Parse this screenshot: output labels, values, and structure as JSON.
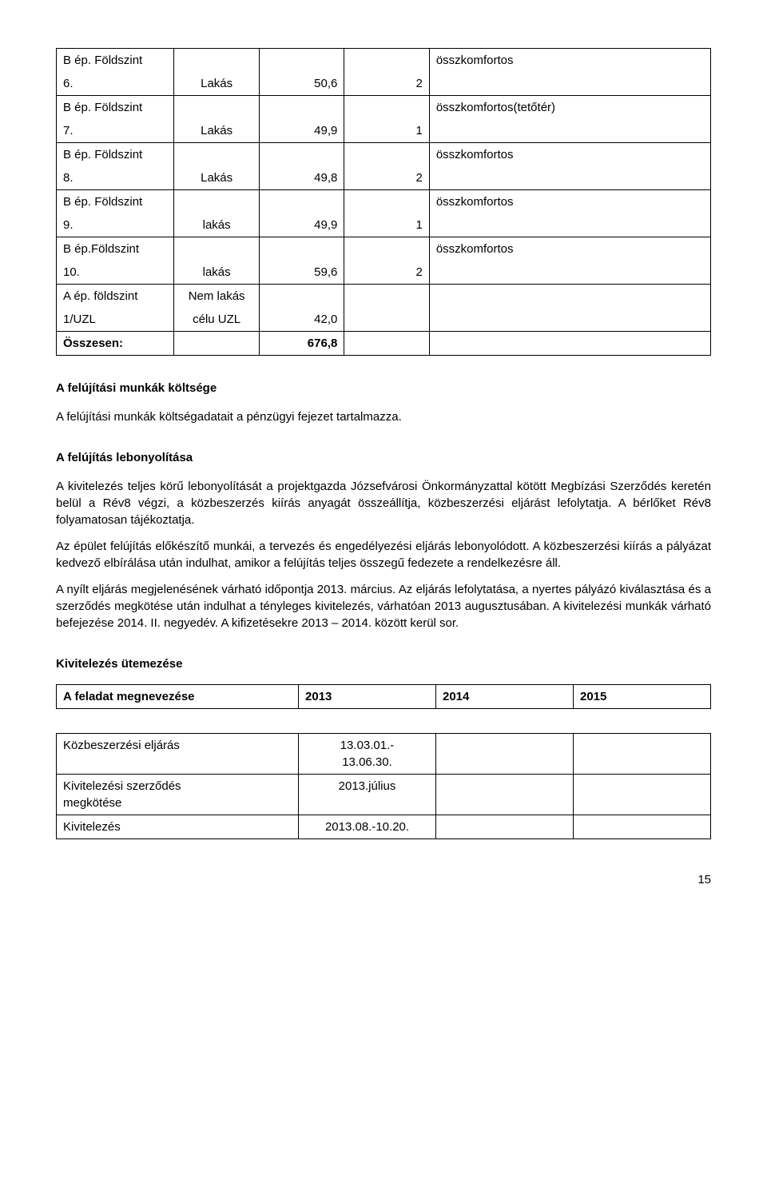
{
  "table1": {
    "rows": [
      {
        "labelTop": "B ép. Földszint",
        "labelBottom": "6.",
        "type": "Lakás",
        "area": "50,6",
        "rooms": "2",
        "comfort": "összkomfortos"
      },
      {
        "labelTop": "B ép. Földszint",
        "labelBottom": "7.",
        "type": "Lakás",
        "area": "49,9",
        "rooms": "1",
        "comfort": "összkomfortos(tetőtér)"
      },
      {
        "labelTop": "B ép. Földszint",
        "labelBottom": "8.",
        "type": "Lakás",
        "area": "49,8",
        "rooms": "2",
        "comfort": "összkomfortos"
      },
      {
        "labelTop": "B ép. Földszint",
        "labelBottom": "9.",
        "type": "lakás",
        "area": "49,9",
        "rooms": "1",
        "comfort": "összkomfortos"
      },
      {
        "labelTop": "B ép.Földszint",
        "labelBottom": "10.",
        "type": "lakás",
        "area": "59,6",
        "rooms": "2",
        "comfort": "összkomfortos"
      },
      {
        "labelTop": "A ép. földszint",
        "labelBottom": "1/UZL",
        "type": "Nem lakás\ncélu UZL",
        "area": "42,0",
        "rooms": "",
        "comfort": ""
      }
    ],
    "totalLabel": "Összesen:",
    "totalArea": "676,8"
  },
  "section1": {
    "heading": "A felújítási munkák költsége",
    "p1": "A felújítási munkák költségadatait a pénzügyi fejezet tartalmazza."
  },
  "section2": {
    "heading": "A felújítás lebonyolítása",
    "p1": "A kivitelezés teljes körű lebonyolítását a projektgazda Józsefvárosi Önkormányzattal kötött Megbízási Szerződés keretén belül a Rév8 végzi, a közbeszerzés kiírás anyagát összeállítja, közbeszerzési eljárást lefolytatja. A bérlőket Rév8 folyamatosan tájékoztatja.",
    "p2": "Az épület felújítás előkészítő munkái, a tervezés és engedélyezési eljárás lebonyolódott. A közbeszerzési kiírás a pályázat kedvező elbírálása után indulhat, amikor a felújítás teljes összegű fedezete a rendelkezésre áll.",
    "p3": "A nyílt eljárás megjelenésének várható időpontja 2013. március. Az eljárás lefolytatása, a nyertes pályázó kiválasztása és a szerződés megkötése után indulhat a tényleges kivitelezés, várhatóan 2013 augusztusában. A kivitelezési  munkák várható befejezése 2014. II. negyedév. A kifizetésekre 2013 – 2014. között kerül sor."
  },
  "sched": {
    "heading": "Kivitelezés ütemezése",
    "header": {
      "c1": "A feladat megnevezése",
      "c2": "2013",
      "c3": "2014",
      "c4": "2015"
    },
    "rows": [
      {
        "c1": "Közbeszerzési eljárás",
        "c2": "13.03.01.-\n13.06.30.",
        "c3": "",
        "c4": ""
      },
      {
        "c1": "Kivitelezési szerződés\nmegkötése",
        "c2": "2013.július",
        "c3": "",
        "c4": ""
      },
      {
        "c1": "Kivitelezés",
        "c2": "2013.08.-10.20.",
        "c3": "",
        "c4": ""
      }
    ]
  },
  "pageNumber": "15"
}
